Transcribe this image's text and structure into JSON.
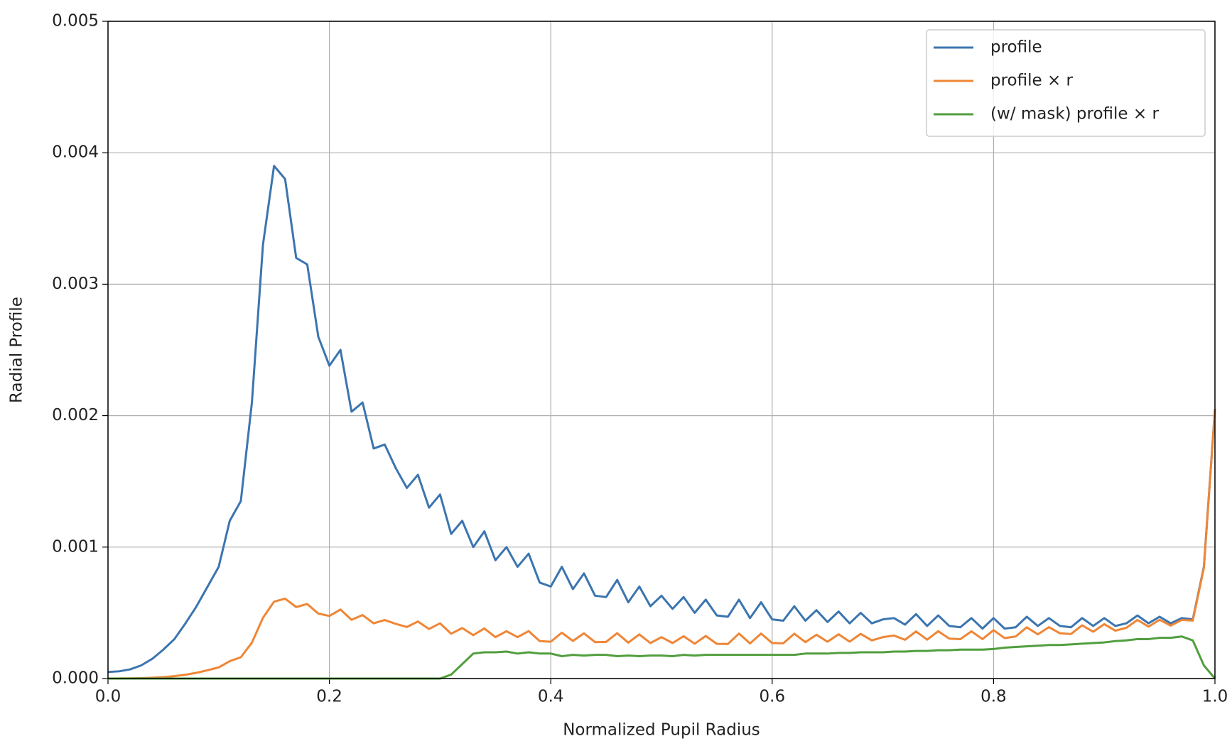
{
  "chart_data": {
    "type": "line",
    "xlabel": "Normalized Pupil Radius",
    "ylabel": "Radial Profile",
    "xlim": [
      0,
      1
    ],
    "ylim": [
      0,
      0.005
    ],
    "xticks": [
      {
        "value": 0,
        "label": "0.0"
      },
      0.2,
      0.4,
      0.6,
      0.8,
      {
        "value": 1,
        "label": "1.0"
      }
    ],
    "yticks": [
      {
        "value": 0,
        "label": "0.000"
      },
      {
        "value": 0.001,
        "label": "0.001"
      },
      {
        "value": 0.002,
        "label": "0.002"
      },
      {
        "value": 0.003,
        "label": "0.003"
      },
      {
        "value": 0.004,
        "label": "0.004"
      },
      {
        "value": 0.005,
        "label": "0.005"
      }
    ],
    "grid": true,
    "legend": "upper right",
    "x": [
      0,
      0.01,
      0.02,
      0.03,
      0.04,
      0.05,
      0.06,
      0.07,
      0.08,
      0.09,
      0.1,
      0.11,
      0.12,
      0.13,
      0.14,
      0.15,
      0.16,
      0.17,
      0.18,
      0.19,
      0.2,
      0.21,
      0.22,
      0.23,
      0.24,
      0.25,
      0.26,
      0.27,
      0.28,
      0.29,
      0.3,
      0.31,
      0.32,
      0.33,
      0.34,
      0.35,
      0.36,
      0.37,
      0.38,
      0.39,
      0.4,
      0.41,
      0.42,
      0.43,
      0.44,
      0.45,
      0.46,
      0.47,
      0.48,
      0.49,
      0.5,
      0.51,
      0.52,
      0.53,
      0.54,
      0.55,
      0.56,
      0.57,
      0.58,
      0.59,
      0.6,
      0.61,
      0.62,
      0.63,
      0.64,
      0.65,
      0.66,
      0.67,
      0.68,
      0.69,
      0.7,
      0.71,
      0.72,
      0.73,
      0.74,
      0.75,
      0.76,
      0.77,
      0.78,
      0.79,
      0.8,
      0.81,
      0.82,
      0.83,
      0.84,
      0.85,
      0.86,
      0.87,
      0.88,
      0.89,
      0.9,
      0.91,
      0.92,
      0.93,
      0.94,
      0.95,
      0.96,
      0.97,
      0.98,
      0.99,
      1
    ],
    "series": [
      {
        "name": "profile",
        "color": "#3b75af",
        "values": [
          5e-05,
          5.5e-05,
          7e-05,
          0.0001,
          0.00015,
          0.00022,
          0.0003,
          0.00042,
          0.00055,
          0.0007,
          0.00085,
          0.0012,
          0.00135,
          0.0021,
          0.0033,
          0.0039,
          0.0038,
          0.0032,
          0.00315,
          0.0026,
          0.00238,
          0.0025,
          0.00203,
          0.0021,
          0.00175,
          0.00178,
          0.0016,
          0.00145,
          0.00155,
          0.0013,
          0.0014,
          0.0011,
          0.0012,
          0.001,
          0.00112,
          0.0009,
          0.001,
          0.00085,
          0.00095,
          0.00073,
          0.0007,
          0.00085,
          0.00068,
          0.0008,
          0.00063,
          0.00062,
          0.00075,
          0.00058,
          0.0007,
          0.00055,
          0.00063,
          0.00053,
          0.00062,
          0.0005,
          0.0006,
          0.00048,
          0.00047,
          0.0006,
          0.00046,
          0.00058,
          0.00045,
          0.00044,
          0.00055,
          0.00044,
          0.00052,
          0.00043,
          0.00051,
          0.00042,
          0.0005,
          0.00042,
          0.00045,
          0.00046,
          0.00041,
          0.00049,
          0.0004,
          0.00048,
          0.0004,
          0.00039,
          0.00046,
          0.00038,
          0.00046,
          0.00038,
          0.00039,
          0.00047,
          0.0004,
          0.00046,
          0.0004,
          0.00039,
          0.00046,
          0.0004,
          0.00046,
          0.0004,
          0.00042,
          0.00048,
          0.00042,
          0.00047,
          0.00042,
          0.00046,
          0.00045,
          0.00085,
          0.00205
        ]
      },
      {
        "name": "profile × r",
        "color": "#ef8636",
        "values": [
          0,
          6e-07,
          1.4e-06,
          3e-06,
          6e-06,
          1.1e-05,
          1.8e-05,
          2.9e-05,
          4.4e-05,
          6.3e-05,
          8.5e-05,
          0.000132,
          0.000162,
          0.000273,
          0.000462,
          0.000585,
          0.000608,
          0.000544,
          0.000567,
          0.000494,
          0.000476,
          0.000525,
          0.000447,
          0.000483,
          0.00042,
          0.000445,
          0.000416,
          0.000392,
          0.000434,
          0.000377,
          0.00042,
          0.000341,
          0.000384,
          0.00033,
          0.000381,
          0.000315,
          0.00036,
          0.000315,
          0.000361,
          0.000285,
          0.00028,
          0.000349,
          0.000286,
          0.000344,
          0.000277,
          0.000279,
          0.000345,
          0.000273,
          0.000336,
          0.00027,
          0.000315,
          0.00027,
          0.000322,
          0.000265,
          0.000324,
          0.000264,
          0.000263,
          0.000342,
          0.000267,
          0.000342,
          0.00027,
          0.000268,
          0.000341,
          0.000277,
          0.000333,
          0.00028,
          0.000337,
          0.000281,
          0.00034,
          0.00029,
          0.000315,
          0.000327,
          0.000295,
          0.000358,
          0.000296,
          0.00036,
          0.000304,
          0.0003,
          0.000359,
          0.0003,
          0.000368,
          0.000308,
          0.00032,
          0.00039,
          0.000336,
          0.000391,
          0.000344,
          0.000339,
          0.000405,
          0.000356,
          0.000414,
          0.000364,
          0.000386,
          0.000446,
          0.000395,
          0.000447,
          0.000403,
          0.000446,
          0.000441,
          0.000842,
          0.00205
        ]
      },
      {
        "name": "(w/ mask) profile × r",
        "color": "#519e3e",
        "values": [
          0,
          0,
          0,
          0,
          0,
          0,
          0,
          0,
          0,
          0,
          0,
          0,
          0,
          0,
          0,
          0,
          0,
          0,
          0,
          0,
          0,
          0,
          0,
          0,
          0,
          0,
          0,
          0,
          0,
          0,
          0,
          3e-05,
          0.00011,
          0.00019,
          0.0002,
          0.0002,
          0.000205,
          0.00019,
          0.0002,
          0.00019,
          0.00019,
          0.00017,
          0.00018,
          0.000175,
          0.00018,
          0.00018,
          0.00017,
          0.000175,
          0.00017,
          0.000175,
          0.000175,
          0.00017,
          0.00018,
          0.000175,
          0.00018,
          0.00018,
          0.00018,
          0.00018,
          0.00018,
          0.00018,
          0.00018,
          0.00018,
          0.00018,
          0.00019,
          0.00019,
          0.00019,
          0.000195,
          0.000195,
          0.0002,
          0.0002,
          0.0002,
          0.000205,
          0.000205,
          0.00021,
          0.00021,
          0.000215,
          0.000215,
          0.00022,
          0.00022,
          0.00022,
          0.000225,
          0.000235,
          0.00024,
          0.000245,
          0.00025,
          0.000255,
          0.000255,
          0.00026,
          0.000265,
          0.00027,
          0.000275,
          0.000285,
          0.00029,
          0.0003,
          0.0003,
          0.00031,
          0.00031,
          0.00032,
          0.00029,
          0.0001,
          0
        ]
      }
    ]
  }
}
